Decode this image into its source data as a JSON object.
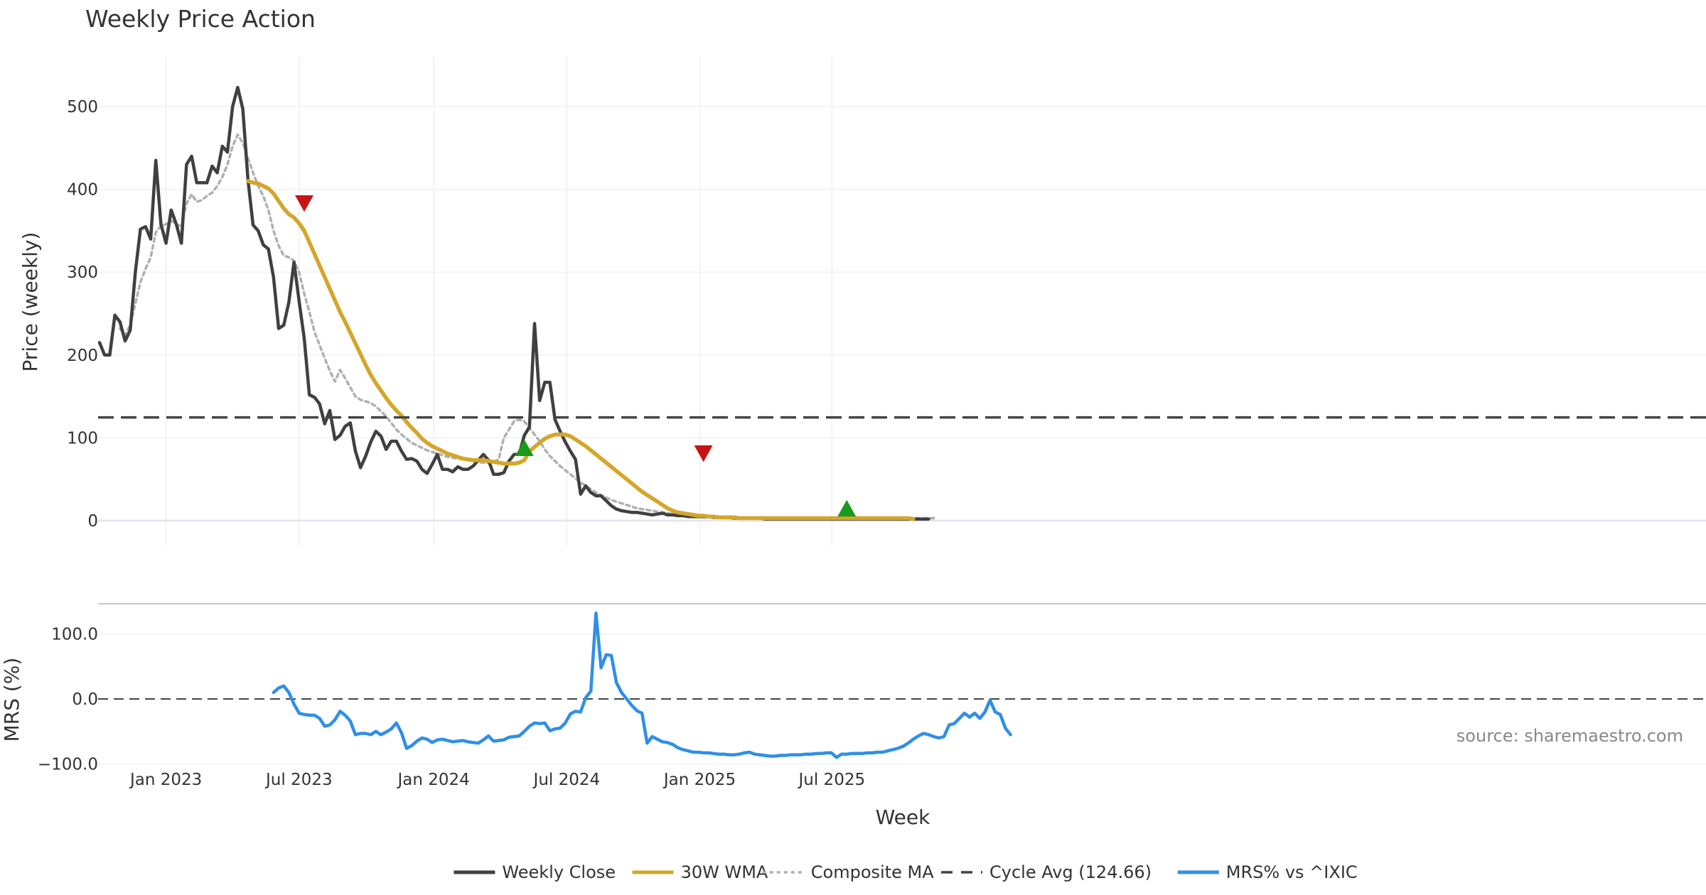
{
  "colors": {
    "weekly_close": "#404040",
    "wma": "#d4a62a",
    "composite": "#b0b0b0",
    "cycle_avg": "#444444",
    "mrs": "#2f8fe6",
    "buy_marker": "#1a9a1a",
    "sell_marker": "#c81414"
  },
  "chart_data": [
    {
      "type": "line",
      "title": "Weekly Price Action",
      "xlabel": "",
      "ylabel": "Price (weekly)",
      "x_tick_labels": [
        "Jan 2023",
        "Jul 2023",
        "Jan 2024",
        "Jul 2024",
        "Jan 2025",
        "Jul 2025"
      ],
      "ylim": [
        -30,
        560
      ],
      "yticks": [
        0,
        100,
        200,
        300,
        400,
        500
      ],
      "x_start": "2022-10-03",
      "x_step_weeks": 1,
      "series": [
        {
          "name": "Weekly Close",
          "values": [
            215,
            200,
            200,
            248,
            240,
            217,
            230,
            300,
            352,
            355,
            340,
            435,
            358,
            335,
            375,
            358,
            335,
            430,
            440,
            408,
            408,
            408,
            428,
            420,
            452,
            445,
            500,
            523,
            497,
            412,
            357,
            350,
            333,
            328,
            294,
            232,
            236,
            264,
            312,
            265,
            220,
            152,
            149,
            141,
            117,
            133,
            98,
            103,
            114,
            118,
            84,
            64,
            78,
            95,
            108,
            102,
            86,
            96,
            96,
            84,
            74,
            75,
            72,
            62,
            57,
            68,
            80,
            62,
            62,
            59,
            65,
            62,
            62,
            66,
            73,
            80,
            73,
            56,
            56,
            58,
            72,
            80,
            80,
            103,
            113,
            238,
            145,
            167,
            167,
            122,
            108,
            95,
            84,
            74,
            32,
            42,
            34,
            30,
            30,
            24,
            18,
            14,
            12,
            11,
            10,
            10,
            9,
            8,
            7,
            8,
            9,
            7,
            7,
            6,
            6,
            5,
            5,
            5,
            5,
            5,
            4,
            4,
            4,
            4,
            3,
            3,
            3,
            3,
            3,
            3,
            2,
            2,
            2,
            2,
            2,
            2,
            2,
            2,
            2,
            2,
            2,
            2,
            2,
            2,
            2,
            2,
            2,
            2,
            2,
            2,
            2,
            2,
            2,
            2,
            2,
            2,
            2,
            2,
            2,
            2,
            2,
            2,
            2
          ]
        },
        {
          "name": "30W WMA",
          "start_index": 29,
          "values": [
            410,
            408,
            407,
            404,
            401,
            395,
            386,
            377,
            370,
            366,
            359,
            350,
            336,
            322,
            308,
            294,
            280,
            266,
            252,
            240,
            227,
            214,
            201,
            188,
            176,
            166,
            157,
            148,
            140,
            133,
            127,
            119,
            112,
            106,
            99,
            94,
            90,
            87,
            84,
            81,
            79,
            77,
            75,
            74,
            73,
            73,
            73,
            72,
            71,
            70,
            69,
            69,
            69,
            70,
            73,
            84,
            89,
            94,
            99,
            102,
            104,
            104,
            104,
            102,
            98,
            94,
            90,
            85,
            80,
            75,
            70,
            65,
            60,
            55,
            50,
            45,
            40,
            35,
            31,
            27,
            23,
            19,
            15,
            12,
            10,
            9,
            8,
            7,
            6,
            6,
            5,
            5,
            4,
            4,
            4,
            4,
            3,
            3,
            3,
            3,
            3,
            3,
            3,
            3,
            3,
            3,
            3,
            3,
            3,
            3,
            3,
            3,
            3,
            3,
            3,
            3,
            3,
            3,
            3,
            3,
            3,
            3,
            3,
            3,
            3,
            3,
            3,
            3,
            3,
            3,
            2
          ]
        },
        {
          "name": "Composite MA",
          "start_index": 4,
          "values": [
            232,
            224,
            236,
            262,
            288,
            304,
            318,
            348,
            356,
            358,
            362,
            358,
            355,
            383,
            394,
            385,
            387,
            392,
            396,
            404,
            415,
            430,
            452,
            466,
            456,
            438,
            420,
            404,
            392,
            375,
            350,
            332,
            320,
            318,
            314,
            300,
            274,
            252,
            228,
            212,
            196,
            181,
            168,
            182,
            172,
            161,
            150,
            146,
            144,
            142,
            138,
            132,
            126,
            118,
            110,
            104,
            99,
            94,
            91,
            88,
            85,
            83,
            81,
            79,
            77,
            76,
            75,
            74,
            73,
            72,
            71,
            70,
            70,
            71,
            74,
            100,
            110,
            120,
            122,
            120,
            112,
            104,
            96,
            86,
            78,
            72,
            66,
            61,
            56,
            51,
            46,
            42,
            38,
            34,
            31,
            28,
            25,
            23,
            21,
            19,
            17,
            15,
            14,
            13,
            12,
            11,
            10,
            9,
            8,
            7,
            6,
            6,
            5,
            5,
            4,
            4,
            4,
            4,
            3,
            3,
            3,
            3,
            3,
            3,
            3,
            3,
            3,
            3,
            3,
            3,
            3,
            3,
            3,
            3,
            3,
            3,
            3,
            3,
            3,
            3,
            3,
            3,
            3,
            3,
            3,
            3,
            3,
            3,
            3,
            3,
            3,
            3,
            3,
            3,
            3,
            3,
            3,
            3,
            3,
            3
          ]
        },
        {
          "name": "Cycle Avg (124.66)",
          "constant": 124.66
        }
      ],
      "markers": [
        {
          "type": "sell",
          "index": 40,
          "value": 384
        },
        {
          "type": "buy",
          "index": 83,
          "value": 87
        },
        {
          "type": "sell",
          "index": 118,
          "value": 82
        },
        {
          "type": "buy",
          "index": 146,
          "value": 14
        }
      ]
    },
    {
      "type": "line",
      "xlabel": "Week",
      "ylabel": "MRS (%)",
      "ylim": [
        -105,
        140
      ],
      "yticks": [
        100,
        0,
        -100
      ],
      "ytick_labels": [
        "100.0",
        "0.0",
        "−100.0"
      ],
      "x_tick_labels": [
        "Jan 2023",
        "Jul 2023",
        "Jan 2024",
        "Jul 2024",
        "Jan 2025",
        "Jul 2025"
      ],
      "series": [
        {
          "name": "MRS% vs ^IXIC",
          "start_index": 34,
          "values": [
            10,
            17,
            20,
            10,
            -8,
            -22,
            -24,
            -25,
            -25,
            -30,
            -42,
            -40,
            -32,
            -19,
            -25,
            -34,
            -55,
            -53,
            -53,
            -55,
            -50,
            -55,
            -51,
            -46,
            -37,
            -52,
            -76,
            -72,
            -65,
            -60,
            -62,
            -67,
            -63,
            -62,
            -64,
            -66,
            -65,
            -64,
            -66,
            -67,
            -68,
            -63,
            -57,
            -65,
            -64,
            -63,
            -59,
            -58,
            -57,
            -50,
            -42,
            -37,
            -38,
            -37,
            -49,
            -46,
            -45,
            -37,
            -23,
            -19,
            -20,
            2,
            12,
            132,
            48,
            68,
            67,
            25,
            10,
            0,
            -10,
            -18,
            -22,
            -68,
            -58,
            -62,
            -66,
            -67,
            -70,
            -75,
            -78,
            -80,
            -82,
            -82,
            -83,
            -83,
            -84,
            -85,
            -85,
            -86,
            -86,
            -85,
            -83,
            -82,
            -85,
            -86,
            -87,
            -88,
            -88,
            -87,
            -87,
            -86,
            -86,
            -86,
            -85,
            -85,
            -84,
            -84,
            -83,
            -83,
            -90,
            -85,
            -85,
            -84,
            -84,
            -84,
            -83,
            -83,
            -82,
            -82,
            -80,
            -78,
            -76,
            -73,
            -68,
            -62,
            -57,
            -53,
            -55,
            -58,
            -60,
            -58,
            -40,
            -38,
            -30,
            -22,
            -28,
            -22,
            -30,
            -20,
            -2,
            -20,
            -24,
            -45,
            -55
          ]
        }
      ],
      "annotation": "source: sharemaestro.com"
    }
  ],
  "legend": [
    {
      "label": "Weekly Close",
      "style": "solid",
      "color_key": "weekly_close"
    },
    {
      "label": "30W WMA",
      "style": "solid",
      "color_key": "wma"
    },
    {
      "label": "Composite MA",
      "style": "dotted",
      "color_key": "composite"
    },
    {
      "label": "Cycle Avg (124.66)",
      "style": "dashed",
      "color_key": "cycle_avg"
    },
    {
      "label": "MRS% vs ^IXIC",
      "style": "solid",
      "color_key": "mrs"
    }
  ]
}
